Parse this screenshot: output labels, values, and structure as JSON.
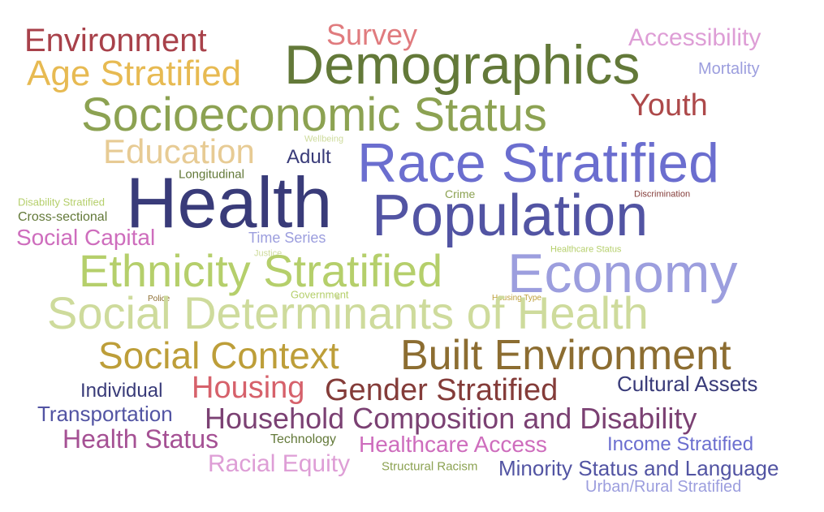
{
  "words": [
    {
      "text": "Environment",
      "color": "#a8414a"
    },
    {
      "text": "Survey",
      "color": "#e07b7e"
    },
    {
      "text": "Accessibility",
      "color": "#de9ed6"
    },
    {
      "text": "Demographics",
      "color": "#637939"
    },
    {
      "text": "Age Stratified",
      "color": "#e7ba52"
    },
    {
      "text": "Mortality",
      "color": "#9c9ede"
    },
    {
      "text": "Socioeconomic Status",
      "color": "#8ca252"
    },
    {
      "text": "Youth",
      "color": "#ad494a"
    },
    {
      "text": "Wellbeing",
      "color": "#cedb9c"
    },
    {
      "text": "Education",
      "color": "#e7cb94"
    },
    {
      "text": "Adult",
      "color": "#393b79"
    },
    {
      "text": "Race Stratified",
      "color": "#6b6ecf"
    },
    {
      "text": "Longitudinal",
      "color": "#637939"
    },
    {
      "text": "Health",
      "color": "#393b79"
    },
    {
      "text": "Disability Stratified",
      "color": "#b5cf6b"
    },
    {
      "text": "Crime",
      "color": "#8ca252"
    },
    {
      "text": "Discrimination",
      "color": "#843c39"
    },
    {
      "text": "Population",
      "color": "#5254a3"
    },
    {
      "text": "Cross-sectional",
      "color": "#637939"
    },
    {
      "text": "Social Capital",
      "color": "#ce6dbd"
    },
    {
      "text": "Time Series",
      "color": "#9c9ede"
    },
    {
      "text": "Healthcare Status",
      "color": "#b5cf6b"
    },
    {
      "text": "Justice",
      "color": "#cedb9c"
    },
    {
      "text": "Ethnicity Stratified",
      "color": "#b5cf6b"
    },
    {
      "text": "Economy",
      "color": "#9c9ede"
    },
    {
      "text": "Government",
      "color": "#b5cf6b"
    },
    {
      "text": "Police",
      "color": "#8c6d31"
    },
    {
      "text": "Housing Type",
      "color": "#bd9e39"
    },
    {
      "text": "Social Determinants of Health",
      "color": "#cedb9c"
    },
    {
      "text": "Social Context",
      "color": "#bd9e39"
    },
    {
      "text": "Built Environment",
      "color": "#8c6d31"
    },
    {
      "text": "Individual",
      "color": "#393b79"
    },
    {
      "text": "Housing",
      "color": "#d6616b"
    },
    {
      "text": "Gender Stratified",
      "color": "#843c39"
    },
    {
      "text": "Cultural Assets",
      "color": "#393b79"
    },
    {
      "text": "Transportation",
      "color": "#5254a3"
    },
    {
      "text": "Household Composition and Disability",
      "color": "#7b4173"
    },
    {
      "text": "Health Status",
      "color": "#a55194"
    },
    {
      "text": "Technology",
      "color": "#637939"
    },
    {
      "text": "Healthcare Access",
      "color": "#ce6dbd"
    },
    {
      "text": "Income Stratified",
      "color": "#6b6ecf"
    },
    {
      "text": "Racial Equity",
      "color": "#de9ed6"
    },
    {
      "text": "Structural Racism",
      "color": "#8ca252"
    },
    {
      "text": "Minority Status and Language",
      "color": "#5254a3"
    },
    {
      "text": "Urban/Rural Stratified",
      "color": "#9c9ede"
    }
  ]
}
